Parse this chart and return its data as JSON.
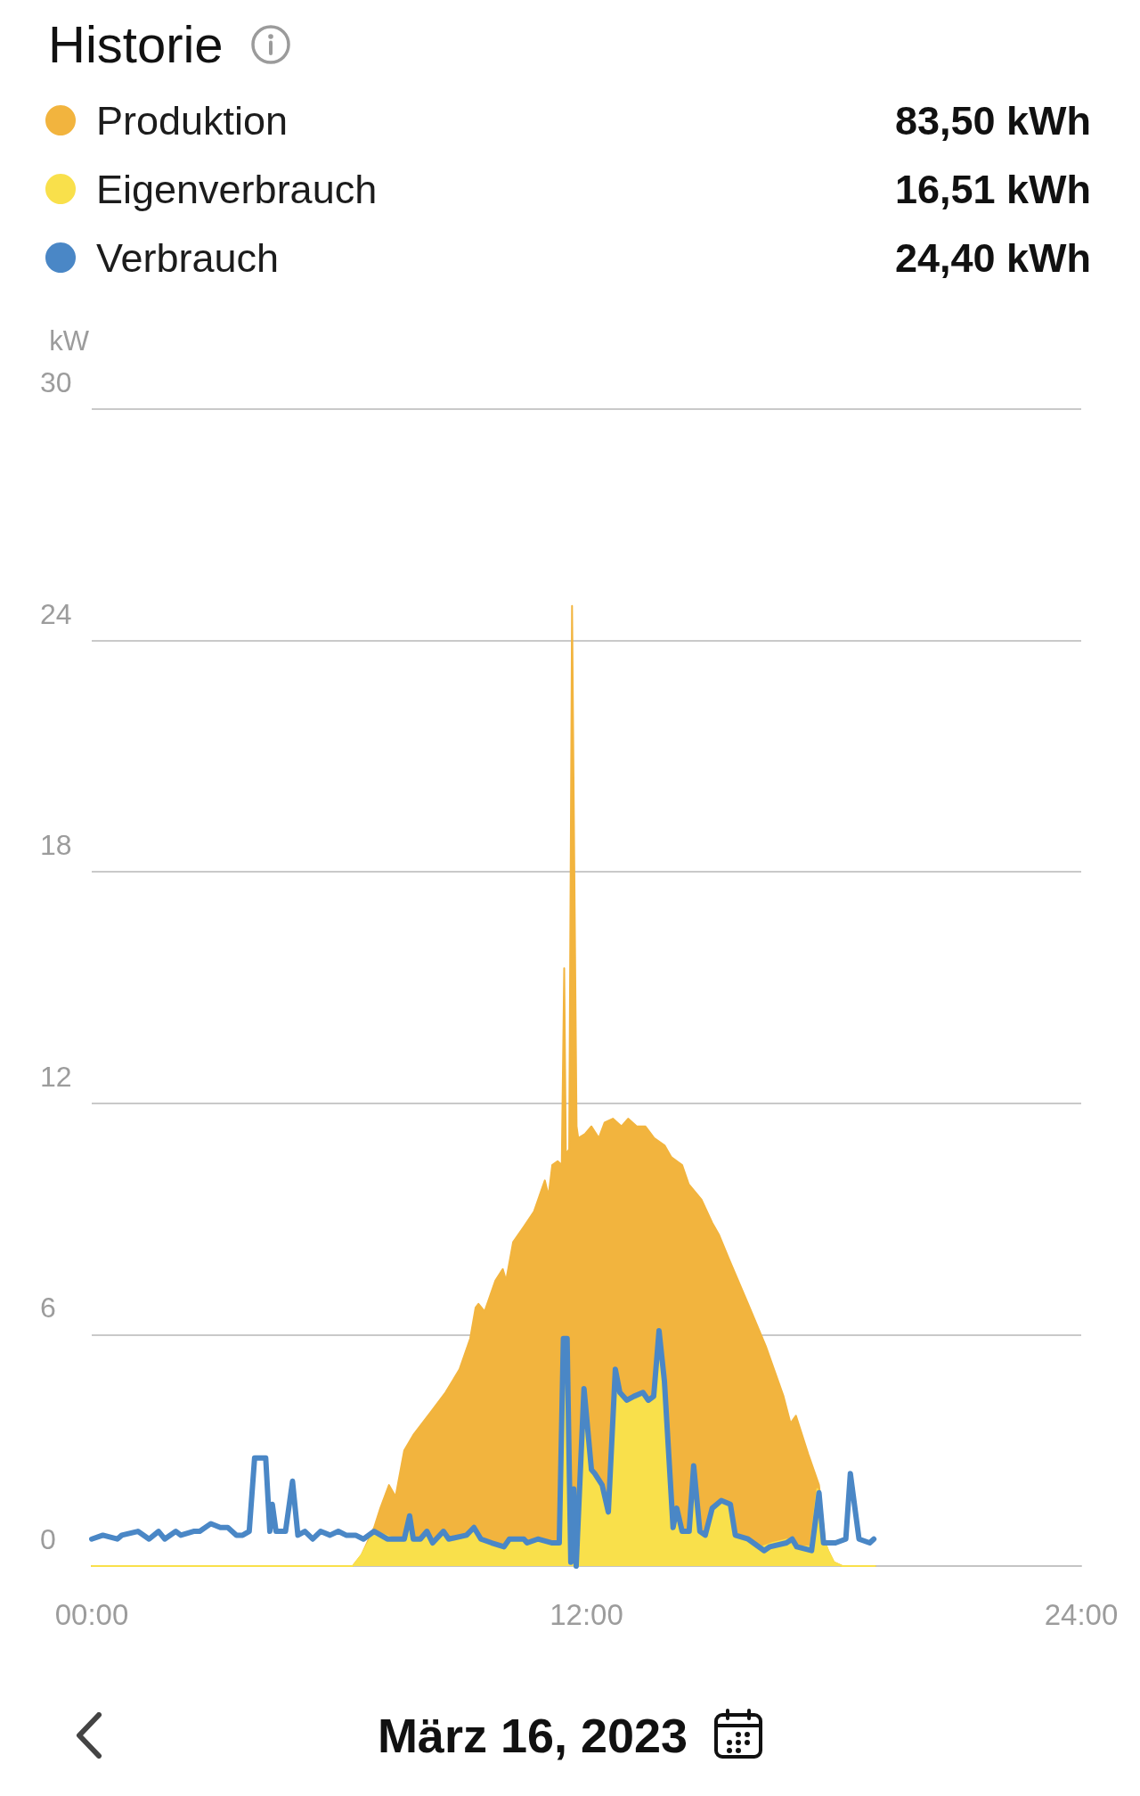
{
  "chart_data": {
    "type": "area",
    "title": "Historie",
    "subtitle": "März 16, 2023",
    "ylabel": "kW",
    "xlim": [
      0,
      24
    ],
    "xticks": [
      {
        "value": 0,
        "label": "00:00"
      },
      {
        "value": 12,
        "label": "12:00"
      },
      {
        "value": 24,
        "label": "24:00"
      }
    ],
    "ylim": [
      0,
      30
    ],
    "yticks": [
      0,
      6,
      12,
      18,
      24,
      30
    ],
    "grid": "y",
    "legend": "top left",
    "marker": "none",
    "annotations": [
      "83,50 kWh",
      "16,51 kWh",
      "24,40 kWh"
    ],
    "series": [
      {
        "name": "Produktion",
        "color": "#f2b43e",
        "x": [
          0,
          6.33,
          6.55,
          6.85,
          7.0,
          7.21,
          7.37,
          7.58,
          7.8,
          8.23,
          8.58,
          8.92,
          9.18,
          9.31,
          9.38,
          9.53,
          9.79,
          9.97,
          10.05,
          10.22,
          10.48,
          10.73,
          10.99,
          11.08,
          11.17,
          11.3,
          11.4,
          11.46,
          11.5,
          11.58,
          11.65,
          11.76,
          11.8,
          11.96,
          12.12,
          12.3,
          12.44,
          12.64,
          12.85,
          13.01,
          13.22,
          13.43,
          13.64,
          13.9,
          14.06,
          14.32,
          14.48,
          14.79,
          15.05,
          15.21,
          15.48,
          15.92,
          16.35,
          16.78,
          16.95,
          17.08,
          17.38,
          17.64,
          17.79,
          17.86,
          18.0,
          18.2,
          19.0
        ],
        "values": [
          0,
          0,
          0.3,
          1.0,
          1.5,
          2.1,
          1.8,
          3.0,
          3.4,
          4.0,
          4.5,
          5.1,
          5.9,
          6.7,
          6.8,
          6.6,
          7.4,
          7.7,
          7.4,
          8.4,
          8.8,
          9.2,
          10.0,
          9.6,
          10.4,
          10.5,
          10.4,
          15.5,
          10.7,
          10.8,
          24.9,
          11.4,
          11.1,
          11.2,
          11.4,
          11.1,
          11.5,
          11.6,
          11.4,
          11.6,
          11.4,
          11.4,
          11.1,
          10.9,
          10.6,
          10.4,
          9.9,
          9.5,
          8.9,
          8.6,
          7.9,
          6.8,
          5.7,
          4.4,
          3.7,
          3.9,
          2.9,
          2.1,
          0.6,
          0.4,
          0.1,
          0,
          0
        ]
      },
      {
        "name": "Eigenverbrauch",
        "color": "#f9e04b",
        "x": [
          0,
          6.33,
          6.55,
          6.85,
          7.37,
          7.58,
          7.71,
          7.8,
          7.97,
          8.13,
          8.27,
          8.53,
          8.66,
          9.09,
          9.27,
          9.44,
          9.7,
          10.0,
          10.13,
          10.48,
          10.56,
          10.82,
          11.17,
          11.34,
          11.44,
          11.53,
          11.62,
          11.69,
          11.75,
          11.94,
          12.12,
          12.2,
          12.38,
          12.53,
          12.7,
          12.81,
          12.98,
          13.15,
          13.37,
          13.5,
          13.63,
          13.76,
          13.89,
          14.1,
          14.19,
          14.32,
          14.49,
          14.6,
          14.75,
          14.88,
          15.05,
          15.27,
          15.49,
          15.61,
          15.92,
          16.26,
          16.52,
          16.91,
          17.04,
          17.43,
          17.6,
          17.69,
          17.79,
          17.86,
          18.0,
          18.2,
          19.0
        ],
        "values": [
          0,
          0,
          0.3,
          0.9,
          0.7,
          0.7,
          1.3,
          0.7,
          0.7,
          0.9,
          0.6,
          0.9,
          0.7,
          0.8,
          1.0,
          0.7,
          0.6,
          0.5,
          0.7,
          0.7,
          0.6,
          0.7,
          0.6,
          0.6,
          5.9,
          5.9,
          0.1,
          2.0,
          0.0,
          4.6,
          2.5,
          2.4,
          2.1,
          1.4,
          5.1,
          4.5,
          4.3,
          4.4,
          4.5,
          4.3,
          4.4,
          6.1,
          4.8,
          1.0,
          1.5,
          0.9,
          0.9,
          2.6,
          0.9,
          0.8,
          1.5,
          1.7,
          1.6,
          0.8,
          0.7,
          0.5,
          0.6,
          0.7,
          0.5,
          0.5,
          2.0,
          0.7,
          0.6,
          0.4,
          0.1,
          0,
          0
        ]
      },
      {
        "name": "Verbrauch",
        "type": "line",
        "color": "#4a87c6",
        "x": [
          0,
          0.27,
          0.62,
          0.73,
          1.12,
          1.39,
          1.62,
          1.77,
          2.04,
          2.16,
          2.47,
          2.62,
          2.89,
          3.12,
          3.3,
          3.51,
          3.66,
          3.82,
          3.95,
          4.16,
          4.22,
          4.32,
          4.38,
          4.47,
          4.7,
          4.87,
          5.0,
          5.17,
          5.36,
          5.55,
          5.78,
          5.98,
          6.17,
          6.4,
          6.59,
          6.85,
          7.17,
          7.37,
          7.58,
          7.71,
          7.8,
          7.97,
          8.13,
          8.27,
          8.53,
          8.66,
          9.09,
          9.27,
          9.44,
          9.7,
          10.0,
          10.13,
          10.48,
          10.56,
          10.82,
          11.17,
          11.34,
          11.44,
          11.53,
          11.62,
          11.69,
          11.75,
          11.94,
          12.12,
          12.2,
          12.38,
          12.53,
          12.7,
          12.81,
          12.98,
          13.15,
          13.37,
          13.5,
          13.63,
          13.76,
          13.89,
          14.1,
          14.19,
          14.32,
          14.49,
          14.6,
          14.75,
          14.88,
          15.05,
          15.27,
          15.49,
          15.61,
          15.92,
          16.31,
          16.45,
          16.85,
          16.99,
          17.1,
          17.46,
          17.64,
          17.75,
          18.04,
          18.29,
          18.4,
          18.61,
          18.87,
          18.97
        ],
        "values": [
          0.7,
          0.8,
          0.7,
          0.8,
          0.9,
          0.7,
          0.9,
          0.7,
          0.9,
          0.8,
          0.9,
          0.9,
          1.1,
          1.0,
          1.0,
          0.8,
          0.8,
          0.9,
          2.8,
          2.8,
          2.8,
          0.9,
          1.6,
          0.9,
          0.9,
          2.2,
          0.8,
          0.9,
          0.7,
          0.9,
          0.8,
          0.9,
          0.8,
          0.8,
          0.7,
          0.9,
          0.7,
          0.7,
          0.7,
          1.3,
          0.7,
          0.7,
          0.9,
          0.6,
          0.9,
          0.7,
          0.8,
          1.0,
          0.7,
          0.6,
          0.5,
          0.7,
          0.7,
          0.6,
          0.7,
          0.6,
          0.6,
          5.9,
          5.9,
          0.1,
          2.0,
          0.0,
          4.6,
          2.5,
          2.4,
          2.1,
          1.4,
          5.1,
          4.5,
          4.3,
          4.4,
          4.5,
          4.3,
          4.4,
          6.1,
          4.8,
          1.0,
          1.5,
          0.9,
          0.9,
          2.6,
          0.9,
          0.8,
          1.5,
          1.7,
          1.6,
          0.8,
          0.7,
          0.4,
          0.5,
          0.6,
          0.7,
          0.5,
          0.4,
          1.9,
          0.6,
          0.6,
          0.7,
          2.4,
          0.7,
          0.6,
          0.7
        ]
      }
    ]
  }
}
